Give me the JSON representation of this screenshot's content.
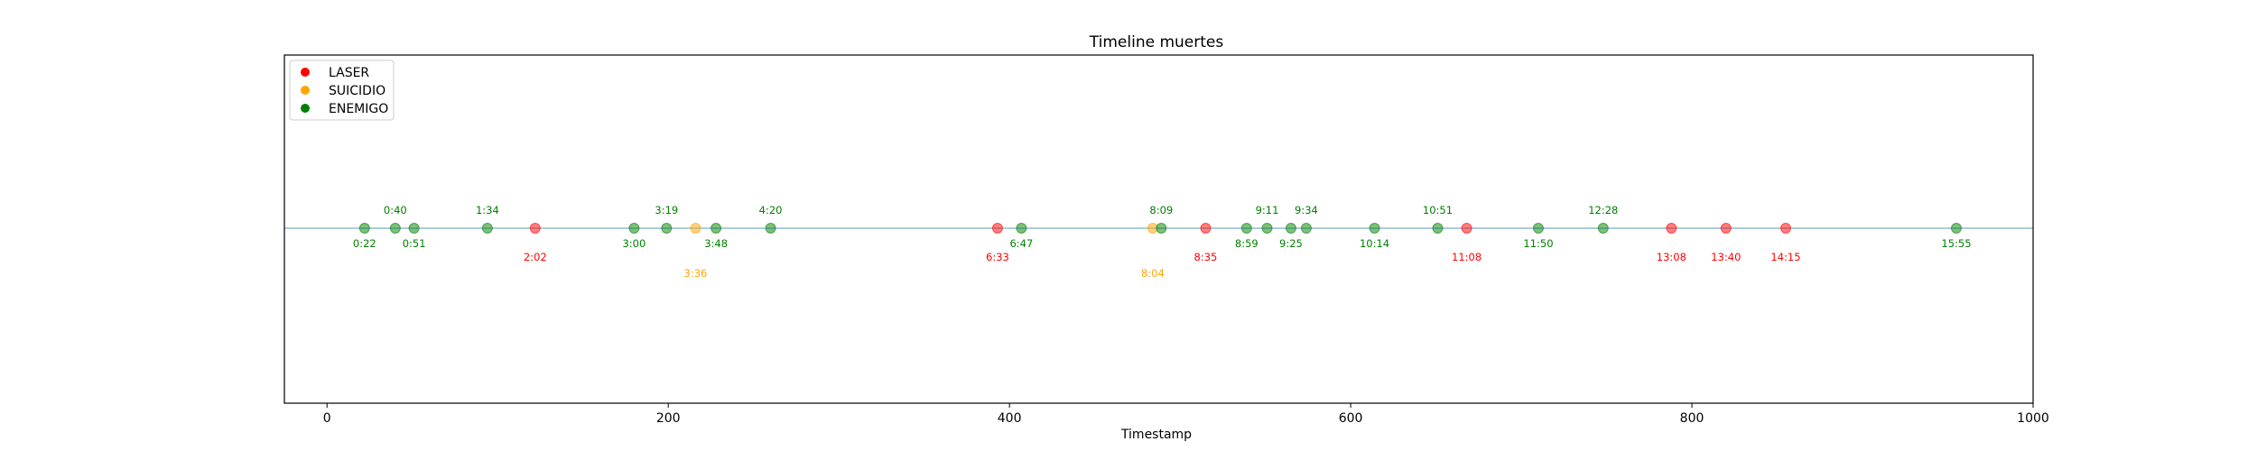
{
  "chart_data": {
    "type": "scatter",
    "title": "Timeline muertes",
    "xlabel": "Timestamp",
    "ylabel": "",
    "xlim": [
      -25,
      1000
    ],
    "ylim": [
      -1,
      1
    ],
    "x_ticks": [
      0,
      200,
      400,
      600,
      800,
      1000
    ],
    "grid": false,
    "legend_position": "top-left",
    "baseline_color": "#1f77b4",
    "series": [
      {
        "name": "LASER",
        "color": "#ff0000"
      },
      {
        "name": "SUICIDIO",
        "color": "#ffa500"
      },
      {
        "name": "ENEMIGO",
        "color": "#008000"
      }
    ],
    "points": [
      {
        "x": 22,
        "label": "0:22",
        "series": "ENEMIGO",
        "label_pos": "below"
      },
      {
        "x": 40,
        "label": "0:40",
        "series": "ENEMIGO",
        "label_pos": "above"
      },
      {
        "x": 51,
        "label": "0:51",
        "series": "ENEMIGO",
        "label_pos": "below"
      },
      {
        "x": 94,
        "label": "1:34",
        "series": "ENEMIGO",
        "label_pos": "above"
      },
      {
        "x": 122,
        "label": "2:02",
        "series": "LASER",
        "label_pos": "below2"
      },
      {
        "x": 180,
        "label": "3:00",
        "series": "ENEMIGO",
        "label_pos": "below"
      },
      {
        "x": 199,
        "label": "3:19",
        "series": "ENEMIGO",
        "label_pos": "above"
      },
      {
        "x": 216,
        "label": "3:36",
        "series": "SUICIDIO",
        "label_pos": "below3"
      },
      {
        "x": 228,
        "label": "3:48",
        "series": "ENEMIGO",
        "label_pos": "below"
      },
      {
        "x": 260,
        "label": "4:20",
        "series": "ENEMIGO",
        "label_pos": "above"
      },
      {
        "x": 393,
        "label": "6:33",
        "series": "LASER",
        "label_pos": "below2"
      },
      {
        "x": 407,
        "label": "6:47",
        "series": "ENEMIGO",
        "label_pos": "below"
      },
      {
        "x": 484,
        "label": "8:04",
        "series": "SUICIDIO",
        "label_pos": "below3"
      },
      {
        "x": 489,
        "label": "8:09",
        "series": "ENEMIGO",
        "label_pos": "above"
      },
      {
        "x": 515,
        "label": "8:35",
        "series": "LASER",
        "label_pos": "below2"
      },
      {
        "x": 539,
        "label": "8:59",
        "series": "ENEMIGO",
        "label_pos": "below"
      },
      {
        "x": 551,
        "label": "9:11",
        "series": "ENEMIGO",
        "label_pos": "above"
      },
      {
        "x": 565,
        "label": "9:25",
        "series": "ENEMIGO",
        "label_pos": "below"
      },
      {
        "x": 574,
        "label": "9:34",
        "series": "ENEMIGO",
        "label_pos": "above"
      },
      {
        "x": 614,
        "label": "10:14",
        "series": "ENEMIGO",
        "label_pos": "below"
      },
      {
        "x": 651,
        "label": "10:51",
        "series": "ENEMIGO",
        "label_pos": "above"
      },
      {
        "x": 668,
        "label": "11:08",
        "series": "LASER",
        "label_pos": "below2"
      },
      {
        "x": 710,
        "label": "11:50",
        "series": "ENEMIGO",
        "label_pos": "below"
      },
      {
        "x": 748,
        "label": "12:28",
        "series": "ENEMIGO",
        "label_pos": "above"
      },
      {
        "x": 788,
        "label": "13:08",
        "series": "LASER",
        "label_pos": "below2"
      },
      {
        "x": 820,
        "label": "13:40",
        "series": "LASER",
        "label_pos": "below2"
      },
      {
        "x": 855,
        "label": "14:15",
        "series": "LASER",
        "label_pos": "below2"
      },
      {
        "x": 955,
        "label": "15:55",
        "series": "ENEMIGO",
        "label_pos": "below"
      }
    ]
  }
}
